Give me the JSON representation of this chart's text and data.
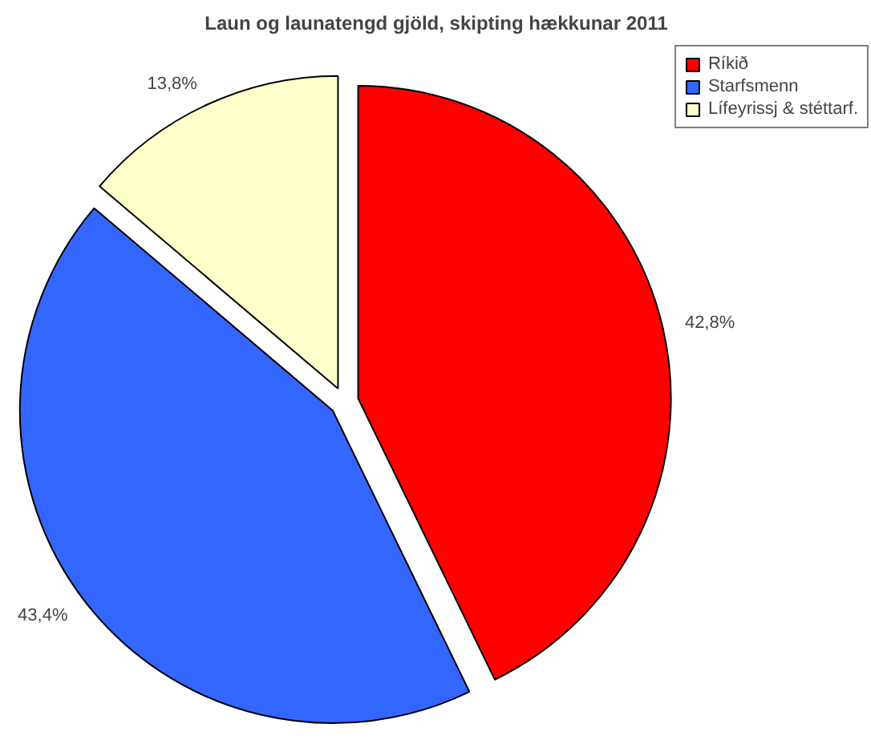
{
  "chart_data": {
    "type": "pie",
    "title": "Laun og launatengd gjöld, skipting hækkunar 2011",
    "categories": [
      "Ríkið",
      "Starfsmenn",
      "Lífeyrissj & stéttarf."
    ],
    "values": [
      42.8,
      43.4,
      13.8
    ],
    "colors": [
      "#ff0000",
      "#3366ff",
      "#ffffcc"
    ],
    "value_labels": [
      "42,8%",
      "43,4%",
      "13,8%"
    ],
    "legend": "top right"
  }
}
